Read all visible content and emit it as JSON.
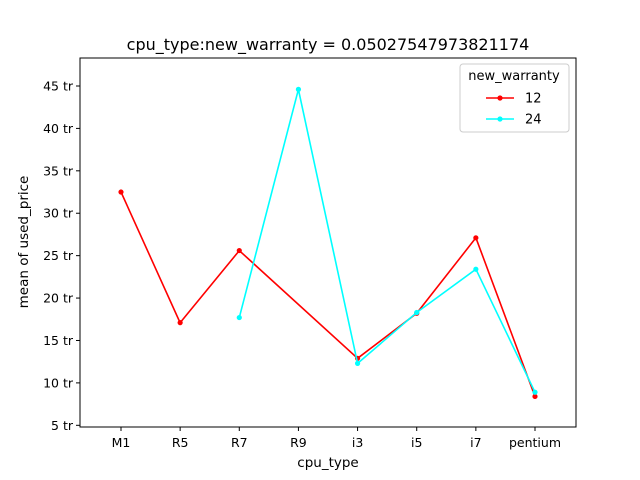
{
  "chart_data": {
    "type": "line",
    "title": "cpu_type:new_warranty = 0.05027547973821174",
    "xlabel": "cpu_type",
    "ylabel": "mean of used_price",
    "categories": [
      "M1",
      "R5",
      "R7",
      "R9",
      "i3",
      "i5",
      "i7",
      "pentium"
    ],
    "yticks": [
      {
        "value": 5,
        "label": "5 tr"
      },
      {
        "value": 10,
        "label": "10 tr"
      },
      {
        "value": 15,
        "label": "15 tr"
      },
      {
        "value": 20,
        "label": "20 tr"
      },
      {
        "value": 25,
        "label": "25 tr"
      },
      {
        "value": 30,
        "label": "30 tr"
      },
      {
        "value": 35,
        "label": "35 tr"
      },
      {
        "value": 40,
        "label": "40 tr"
      },
      {
        "value": 45,
        "label": "45 tr"
      }
    ],
    "ylim": [
      4.8,
      48.3
    ],
    "grid": false,
    "legend": {
      "title": "new_warranty",
      "position": "top-right"
    },
    "series": [
      {
        "name": "12",
        "color": "#ff0000",
        "values": [
          32.5,
          17.1,
          25.6,
          null,
          12.9,
          18.2,
          27.1,
          8.4
        ]
      },
      {
        "name": "24",
        "color": "#00ffff",
        "values": [
          null,
          null,
          17.7,
          44.6,
          12.3,
          18.3,
          23.4,
          8.9
        ]
      }
    ]
  }
}
